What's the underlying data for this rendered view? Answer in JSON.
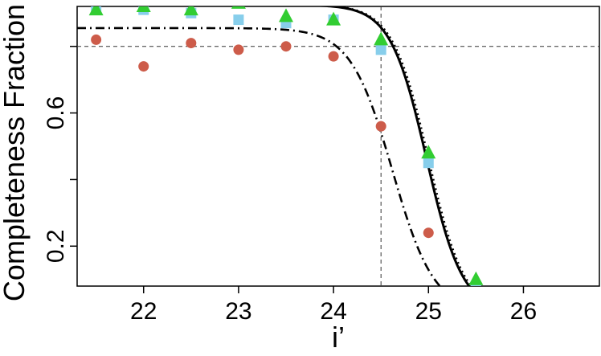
{
  "chart_data": {
    "type": "scatter",
    "xlabel": "i’",
    "ylabel": "Completeness Fraction",
    "xlim": [
      21.3,
      26.8
    ],
    "ylim": [
      0.08,
      0.92
    ],
    "x_ticks": [
      22,
      23,
      24,
      25,
      26
    ],
    "y_ticks": [
      0.2,
      0.6
    ],
    "y_minor_ticks": [
      0.4,
      0.8
    ],
    "grid": false,
    "reference_lines": {
      "x": 24.5,
      "y": 0.8,
      "style": "dashed"
    },
    "series": [
      {
        "marker": "square",
        "color": "#87ceeb",
        "x": [
          21.5,
          22.0,
          22.5,
          23.0,
          23.5,
          24.0,
          24.5,
          25.0,
          25.5
        ],
        "y": [
          0.91,
          0.91,
          0.9,
          0.88,
          0.87,
          0.88,
          0.79,
          0.45,
          0.08
        ]
      },
      {
        "marker": "triangle",
        "color": "#32cd32",
        "x": [
          21.5,
          22.0,
          22.5,
          23.0,
          23.5,
          24.0,
          24.5,
          25.0,
          25.5
        ],
        "y": [
          0.91,
          0.92,
          0.91,
          0.93,
          0.89,
          0.88,
          0.82,
          0.48,
          0.1
        ]
      },
      {
        "marker": "circle",
        "color": "#cd5c4a",
        "x": [
          21.5,
          22.0,
          22.5,
          23.0,
          23.5,
          24.0,
          24.5,
          25.0
        ],
        "y": [
          0.82,
          0.74,
          0.81,
          0.79,
          0.8,
          0.77,
          0.56,
          0.24
        ]
      }
    ],
    "curves": [
      {
        "style": "solid",
        "color": "#000000",
        "plateau": 0.925,
        "midpoint": 24.98,
        "width": 0.19
      },
      {
        "style": "dotted",
        "color": "#000000",
        "plateau": 0.925,
        "midpoint": 25.0,
        "width": 0.19
      },
      {
        "style": "dashdot",
        "color": "#000000",
        "plateau": 0.855,
        "midpoint": 24.62,
        "width": 0.22
      }
    ]
  }
}
